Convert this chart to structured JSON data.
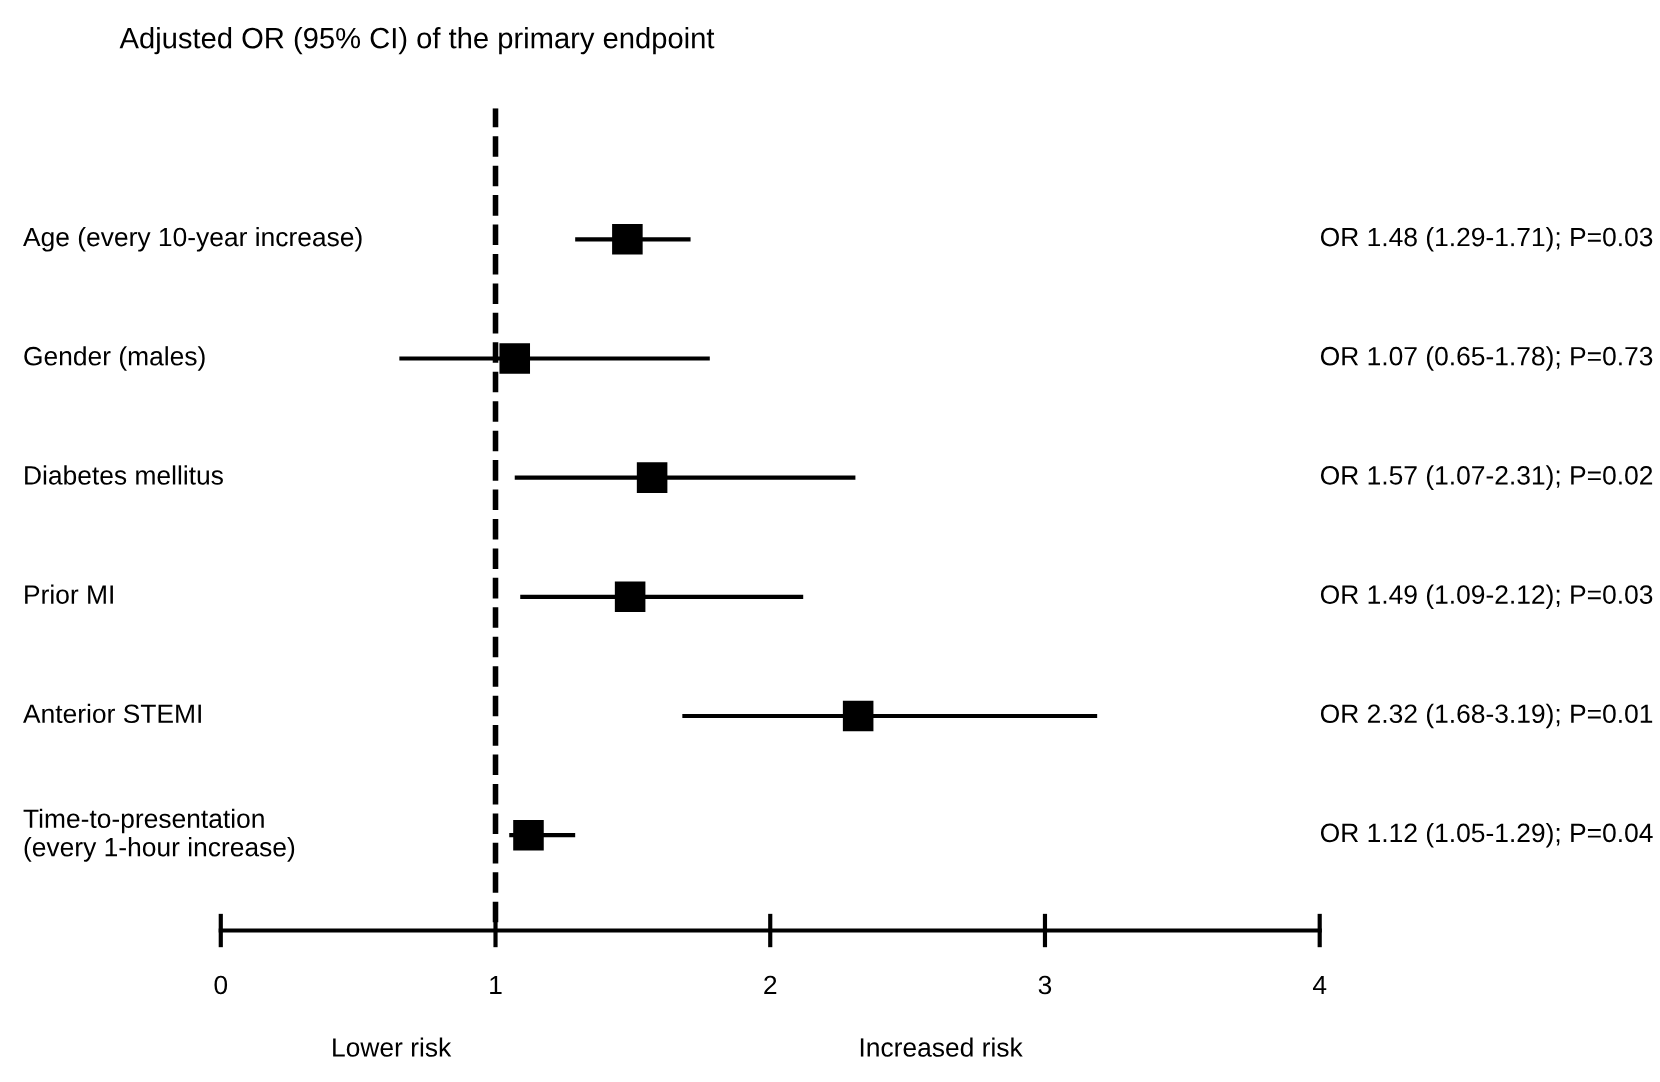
{
  "chart_data": {
    "type": "scatter",
    "orientation": "horizontal",
    "title": "Adjusted OR (95% CI) of the primary endpoint",
    "categories": [
      "Age (every 10-year increase)",
      "Gender (males)",
      "Diabetes mellitus",
      "Prior MI",
      "Anterior STEMI",
      "Time-to-presentation\n(every 1-hour increase)"
    ],
    "values": [
      1.48,
      1.07,
      1.57,
      1.49,
      2.32,
      1.12
    ],
    "errors": [
      [
        1.29,
        1.71
      ],
      [
        0.65,
        1.78
      ],
      [
        1.07,
        2.31
      ],
      [
        1.09,
        2.12
      ],
      [
        1.68,
        3.19
      ],
      [
        1.05,
        1.29
      ]
    ],
    "value_labels": [
      "OR 1.48 (1.29-1.71); P=0.03",
      "OR 1.07 (0.65-1.78); P=0.73",
      "OR 1.57 (1.07-2.31); P=0.02",
      "OR 1.49 (1.09-2.12); P=0.03",
      "OR 2.32 (1.68-3.19); P=0.01",
      "OR 1.12 (1.05-1.29); P=0.04"
    ],
    "color": "#000000",
    "marker": "square",
    "xlim": [
      0,
      4
    ],
    "xticks": [
      0,
      1,
      2,
      3,
      4
    ],
    "ref_lines": [
      {
        "axis": "x",
        "value": 1,
        "line_style": "dashed",
        "color": "#000000"
      }
    ],
    "annotations": [
      "Lower risk",
      "Increased risk"
    ],
    "grid": false,
    "tick_labels": "x"
  }
}
